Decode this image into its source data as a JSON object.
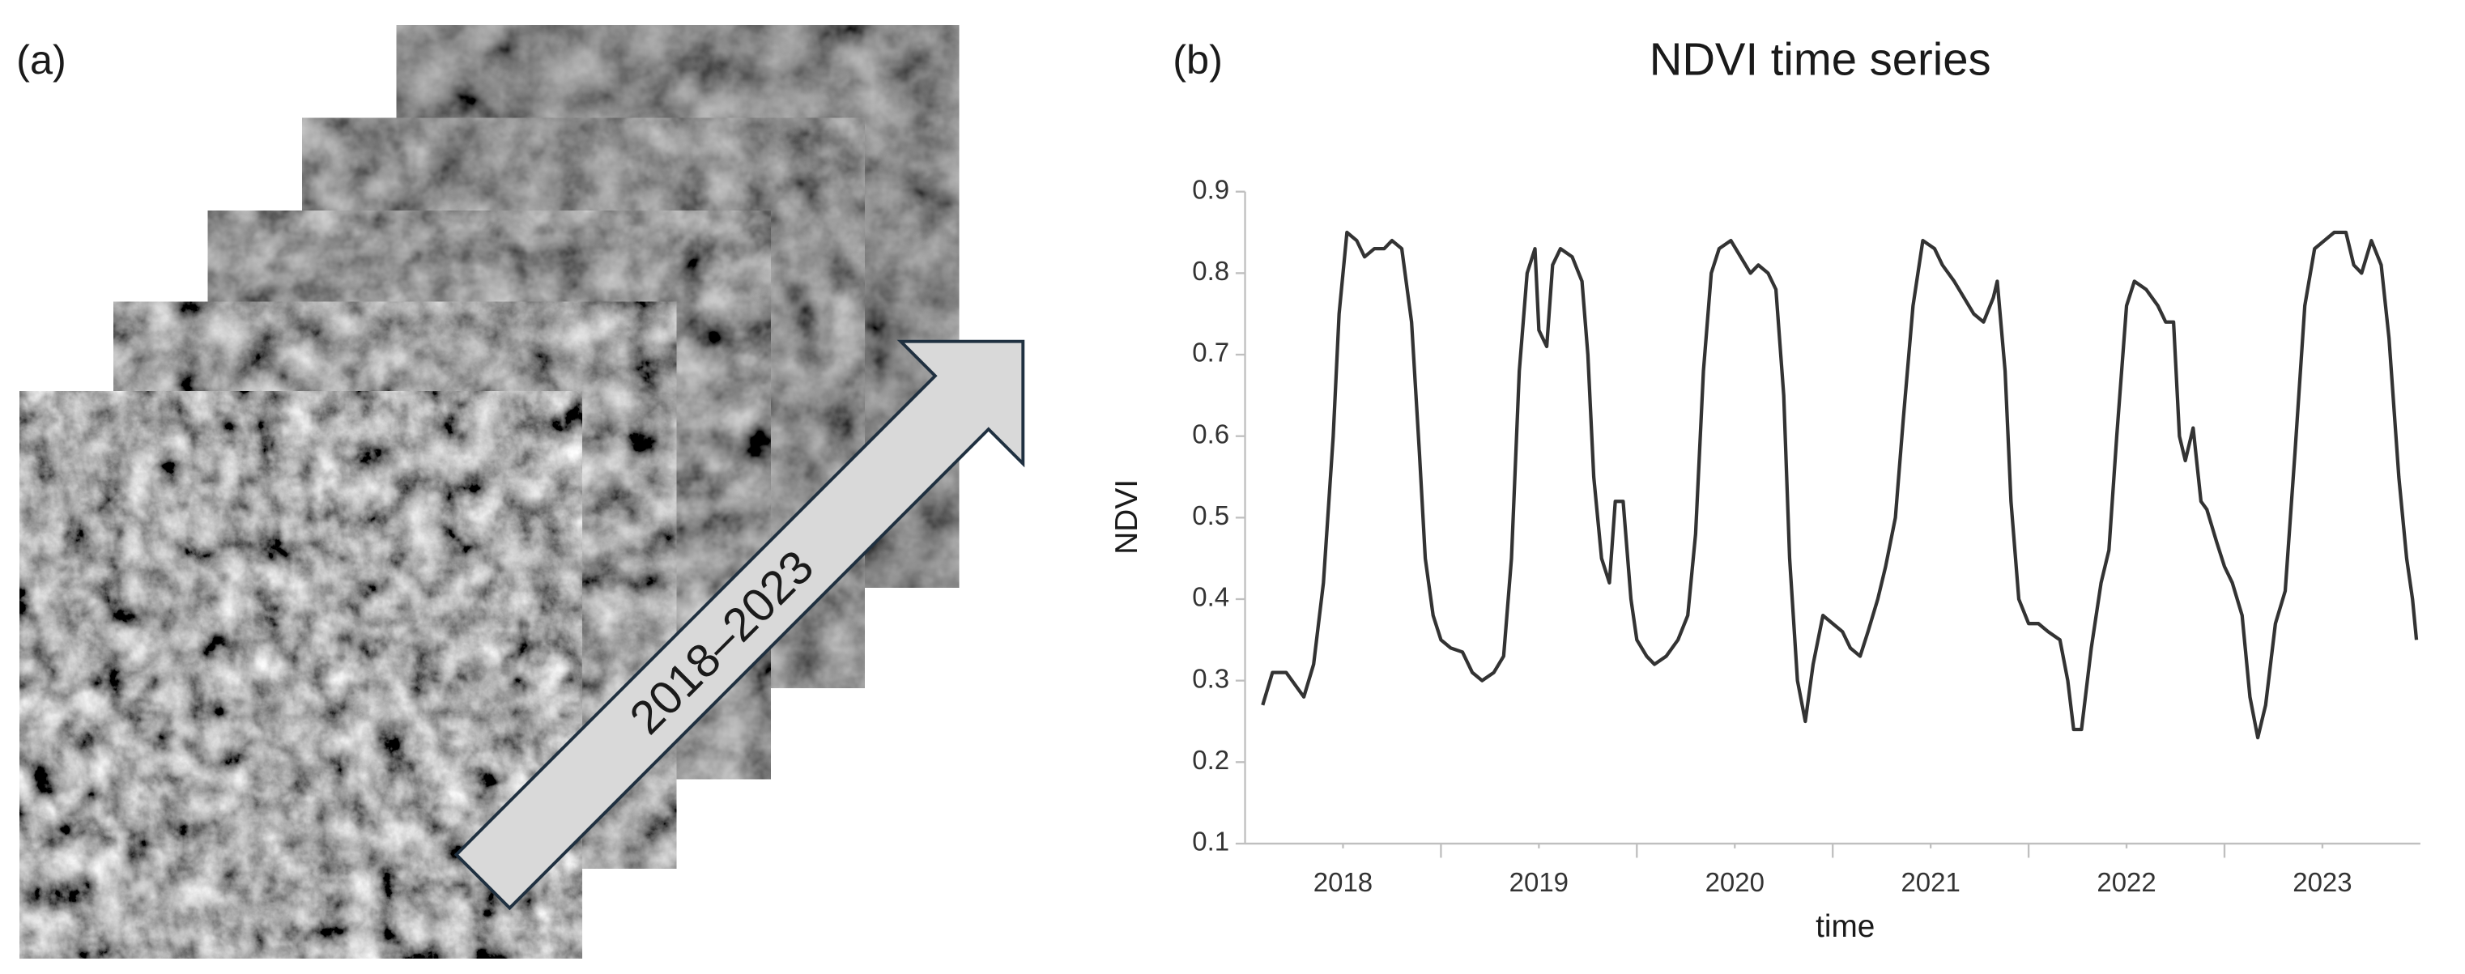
{
  "panel_a": {
    "label": "(a)",
    "arrow_label": "2018–2023"
  },
  "chart_data": {
    "type": "line",
    "panel_label": "(b)",
    "title": "NDVI time series",
    "x_label": "time",
    "y_label": "NDVI",
    "color": "#333333",
    "x": [
      2017.59,
      2017.64,
      2017.71,
      2017.77,
      2017.8,
      2017.85,
      2017.9,
      2017.95,
      2017.98,
      2018.02,
      2018.07,
      2018.11,
      2018.16,
      2018.21,
      2018.25,
      2018.3,
      2018.35,
      2018.39,
      2018.42,
      2018.46,
      2018.5,
      2018.55,
      2018.61,
      2018.66,
      2018.71,
      2018.77,
      2018.82,
      2018.86,
      2018.9,
      2018.94,
      2018.98,
      2019.0,
      2019.04,
      2019.07,
      2019.11,
      2019.17,
      2019.22,
      2019.25,
      2019.28,
      2019.32,
      2019.36,
      2019.39,
      2019.43,
      2019.47,
      2019.5,
      2019.55,
      2019.59,
      2019.65,
      2019.71,
      2019.76,
      2019.8,
      2019.84,
      2019.88,
      2019.92,
      2019.98,
      2020.03,
      2020.08,
      2020.12,
      2020.17,
      2020.21,
      2020.25,
      2020.28,
      2020.32,
      2020.36,
      2020.4,
      2020.45,
      2020.5,
      2020.55,
      2020.59,
      2020.64,
      2020.68,
      2020.73,
      2020.77,
      2020.82,
      2020.86,
      2020.91,
      2020.96,
      2021.02,
      2021.06,
      2021.12,
      2021.17,
      2021.22,
      2021.27,
      2021.32,
      2021.34,
      2021.38,
      2021.41,
      2021.45,
      2021.5,
      2021.55,
      2021.6,
      2021.66,
      2021.7,
      2021.73,
      2021.77,
      2021.82,
      2021.87,
      2021.91,
      2021.95,
      2022.0,
      2022.04,
      2022.1,
      2022.16,
      2022.2,
      2022.24,
      2022.27,
      2022.3,
      2022.34,
      2022.38,
      2022.41,
      2022.46,
      2022.5,
      2022.54,
      2022.59,
      2022.63,
      2022.67,
      2022.71,
      2022.76,
      2022.81,
      2022.86,
      2022.91,
      2022.96,
      2023.01,
      2023.06,
      2023.12,
      2023.16,
      2023.2,
      2023.25,
      2023.3,
      2023.34,
      2023.39,
      2023.43,
      2023.46,
      2023.48
    ],
    "values": [
      0.27,
      0.31,
      0.31,
      0.29,
      0.28,
      0.32,
      0.42,
      0.6,
      0.75,
      0.85,
      0.84,
      0.82,
      0.83,
      0.83,
      0.84,
      0.83,
      0.74,
      0.58,
      0.45,
      0.38,
      0.35,
      0.34,
      0.335,
      0.31,
      0.3,
      0.31,
      0.33,
      0.45,
      0.68,
      0.8,
      0.83,
      0.73,
      0.71,
      0.81,
      0.83,
      0.82,
      0.79,
      0.7,
      0.55,
      0.45,
      0.42,
      0.52,
      0.52,
      0.4,
      0.35,
      0.33,
      0.32,
      0.33,
      0.35,
      0.38,
      0.48,
      0.68,
      0.8,
      0.83,
      0.84,
      0.82,
      0.8,
      0.81,
      0.8,
      0.78,
      0.65,
      0.45,
      0.3,
      0.25,
      0.32,
      0.38,
      0.37,
      0.36,
      0.34,
      0.33,
      0.36,
      0.4,
      0.44,
      0.5,
      0.62,
      0.76,
      0.84,
      0.83,
      0.81,
      0.79,
      0.77,
      0.75,
      0.74,
      0.77,
      0.79,
      0.68,
      0.52,
      0.4,
      0.37,
      0.37,
      0.36,
      0.35,
      0.3,
      0.24,
      0.24,
      0.34,
      0.42,
      0.46,
      0.6,
      0.76,
      0.79,
      0.78,
      0.76,
      0.74,
      0.74,
      0.6,
      0.57,
      0.61,
      0.52,
      0.51,
      0.47,
      0.44,
      0.42,
      0.38,
      0.28,
      0.23,
      0.27,
      0.37,
      0.41,
      0.58,
      0.76,
      0.83,
      0.84,
      0.85,
      0.85,
      0.81,
      0.8,
      0.84,
      0.81,
      0.72,
      0.55,
      0.45,
      0.4,
      0.35
    ],
    "xlim": [
      2017.5,
      2023.5
    ],
    "xticks": [
      2018,
      2019,
      2020,
      2021,
      2022,
      2023
    ],
    "ylim": [
      0.1,
      0.9
    ],
    "yticks": [
      0.1,
      0.2,
      0.3,
      0.4,
      0.5,
      0.6,
      0.7,
      0.8,
      0.9
    ],
    "grid": false
  }
}
